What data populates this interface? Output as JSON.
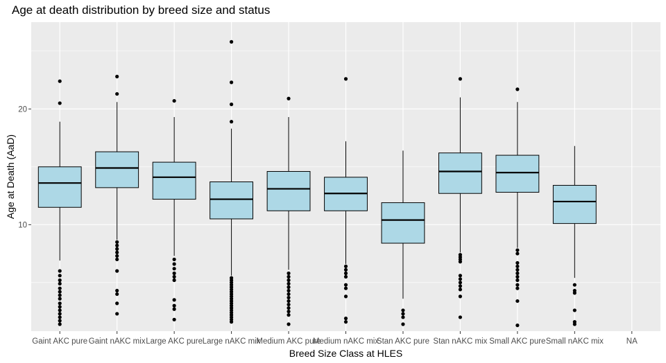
{
  "chart_data": {
    "type": "boxplot",
    "title": "Age at death distribution by breed size and status",
    "xlabel": "Breed Size Class at HLES",
    "ylabel": "Age at Death (AaD)",
    "ylim": [
      0.8,
      27.5
    ],
    "yticks": [
      10,
      20
    ],
    "grid": true,
    "legend": "none",
    "colors": {
      "box_fill": "#add8e6",
      "panel": "#ebebeb",
      "grid": "#ffffff",
      "line": "#000000"
    },
    "categories": [
      "Gaint AKC pure",
      "Gaint nAKC mix",
      "Large AKC pure",
      "Large nAKC mix",
      "Medium AKC pure",
      "Medium nAKC mix",
      "Stan AKC pure",
      "Stan nAKC mix",
      "Small AKC pure",
      "Small nAKC mix",
      "NA"
    ],
    "boxes": [
      {
        "category": "Gaint AKC pure",
        "whisker_low": 6.9,
        "q1": 11.5,
        "median": 13.6,
        "q3": 15.0,
        "whisker_high": 18.9,
        "outliers": [
          22.4,
          20.5,
          6.0,
          5.6,
          5.2,
          4.9,
          4.5,
          4.2,
          3.9,
          3.6,
          3.2,
          2.9,
          2.6,
          2.3,
          2.0,
          1.7,
          1.4
        ]
      },
      {
        "category": "Gaint nAKC mix",
        "whisker_low": 8.7,
        "q1": 13.2,
        "median": 14.9,
        "q3": 16.3,
        "whisker_high": 20.6,
        "outliers": [
          22.8,
          21.3,
          8.5,
          8.2,
          7.9,
          7.6,
          7.3,
          7.0,
          6.0,
          4.3,
          4.0,
          3.2,
          2.3
        ]
      },
      {
        "category": "Large AKC pure",
        "whisker_low": 7.3,
        "q1": 12.2,
        "median": 14.1,
        "q3": 15.4,
        "whisker_high": 19.3,
        "outliers": [
          20.7,
          7.0,
          6.6,
          6.2,
          5.8,
          5.5,
          5.2,
          3.5,
          3.0,
          2.7,
          1.8
        ]
      },
      {
        "category": "Large nAKC mix",
        "whisker_low": 5.6,
        "q1": 10.5,
        "median": 12.2,
        "q3": 13.7,
        "whisker_high": 18.3,
        "outliers": [
          25.8,
          22.3,
          20.4,
          18.9,
          5.4,
          5.2,
          5.0,
          4.8,
          4.6,
          4.4,
          4.2,
          4.0,
          3.8,
          3.6,
          3.4,
          3.2,
          3.0,
          2.8,
          2.6,
          2.4,
          2.2,
          2.0,
          1.8,
          1.6
        ]
      },
      {
        "category": "Medium AKC pure",
        "whisker_low": 6.1,
        "q1": 11.2,
        "median": 13.1,
        "q3": 14.6,
        "whisker_high": 19.3,
        "outliers": [
          20.9,
          5.8,
          5.5,
          5.2,
          4.9,
          4.6,
          4.3,
          4.0,
          3.7,
          3.4,
          3.1,
          2.8,
          2.5,
          2.2,
          1.4
        ]
      },
      {
        "category": "Medium nAKC mix",
        "whisker_low": 6.6,
        "q1": 11.2,
        "median": 12.7,
        "q3": 14.1,
        "whisker_high": 17.2,
        "outliers": [
          22.6,
          6.4,
          6.1,
          5.8,
          5.5,
          4.8,
          4.5,
          3.8,
          1.9,
          1.6
        ]
      },
      {
        "category": "Stan AKC pure",
        "whisker_low": 3.6,
        "q1": 8.4,
        "median": 10.4,
        "q3": 11.9,
        "whisker_high": 16.4,
        "outliers": [
          2.6,
          2.3,
          2.0,
          1.4
        ]
      },
      {
        "category": "Stan nAKC mix",
        "whisker_low": 7.6,
        "q1": 12.7,
        "median": 14.6,
        "q3": 16.2,
        "whisker_high": 21.0,
        "outliers": [
          22.6,
          7.4,
          7.2,
          7.0,
          6.8,
          5.6,
          5.3,
          5.0,
          4.7,
          4.4,
          3.8,
          2.0
        ]
      },
      {
        "category": "Small AKC pure",
        "whisker_low": 8.0,
        "q1": 12.8,
        "median": 14.5,
        "q3": 16.0,
        "whisker_high": 20.6,
        "outliers": [
          21.7,
          7.8,
          7.5,
          6.7,
          6.4,
          6.1,
          5.8,
          5.5,
          5.2,
          4.8,
          4.5,
          3.4,
          1.3
        ]
      },
      {
        "category": "Small nAKC mix",
        "whisker_low": 5.4,
        "q1": 10.1,
        "median": 12.0,
        "q3": 13.4,
        "whisker_high": 16.8,
        "outliers": [
          4.8,
          4.3,
          4.1,
          2.6,
          1.6,
          1.4
        ]
      }
    ]
  }
}
